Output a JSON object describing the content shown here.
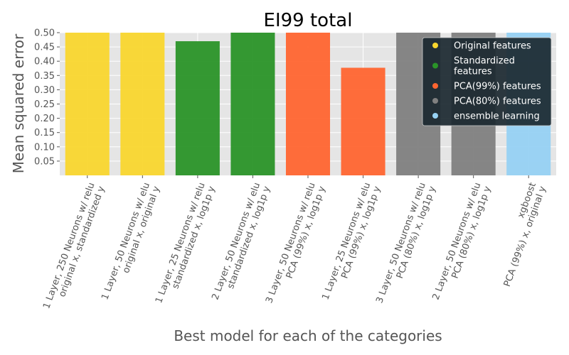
{
  "chart_data": {
    "type": "bar",
    "title": "EI99 total",
    "xlabel": "Best model for each of the categories",
    "ylabel": "Mean squared error",
    "ylim": [
      0,
      0.5
    ],
    "yticks": [
      0.05,
      0.1,
      0.15,
      0.2,
      0.25,
      0.3,
      0.35,
      0.4,
      0.45,
      0.5
    ],
    "grid": true,
    "legend_position": "top-right",
    "categories": [
      [
        "1 Layer, 250 Neurons w/ relu",
        "original x, standardized y"
      ],
      [
        "1 Layer, 50 Neurons w/ elu",
        "original x, original y"
      ],
      [
        "1 Layer, 25 Neurons w/ relu",
        "standardized x, log1p y"
      ],
      [
        "2 Layer, 50 Neurons w/ elu",
        "standardized x, log1p y"
      ],
      [
        "3 Layer, 50 Neurons w/ relu",
        "PCA (99%) x, log1p y"
      ],
      [
        "1 Layer, 25 Neurons w/ elu",
        "PCA (99%) x, log1p y"
      ],
      [
        "3 Layer, 50 Neurons w/ relu",
        "PCA (80%) x, log1p y"
      ],
      [
        "2 Layer, 50 Neurons w/ elu",
        "PCA (80%) x, log1p y"
      ],
      [
        "xgboost",
        "PCA (99%) x, original y"
      ]
    ],
    "values": [
      0.5,
      0.5,
      0.47,
      0.5,
      0.5,
      0.377,
      0.5,
      0.5,
      0.5
    ],
    "bar_groups": [
      0,
      0,
      1,
      1,
      2,
      2,
      3,
      3,
      4
    ],
    "legend": [
      {
        "label": [
          "Original features"
        ],
        "color": "#f9d62e"
      },
      {
        "label": [
          "Standardized",
          "features"
        ],
        "color": "#2a9428"
      },
      {
        "label": [
          "PCA(99%) features"
        ],
        "color": "#ff6530"
      },
      {
        "label": [
          "PCA(80%) features"
        ],
        "color": "#808080"
      },
      {
        "label": [
          "ensemble learning"
        ],
        "color": "#96d1f3"
      }
    ]
  }
}
